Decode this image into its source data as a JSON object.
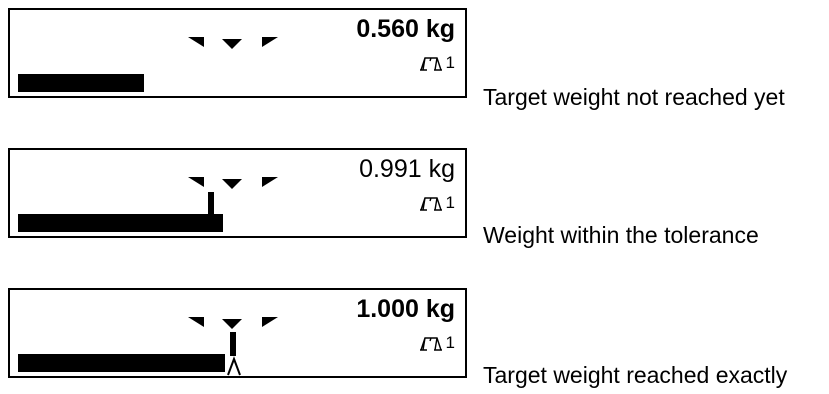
{
  "panels": [
    {
      "weight": "0.560 kg",
      "weight_bold": true,
      "scale_number": "1",
      "progress": 0.56,
      "marker": "none",
      "caption": "Target weight not reached yet"
    },
    {
      "weight": "0.991 kg",
      "weight_bold": false,
      "scale_number": "1",
      "progress": 0.991,
      "marker": "tolerance",
      "caption": "Weight within the tolerance"
    },
    {
      "weight": "1.000 kg",
      "weight_bold": true,
      "scale_number": "1",
      "progress": 1.0,
      "marker": "exact",
      "caption": "Target weight reached exactly"
    }
  ],
  "icons": {
    "target_indicator": "target-triangles-icon",
    "scale": "scale-icon"
  },
  "colors": {
    "foreground": "#000000",
    "background": "#ffffff"
  }
}
